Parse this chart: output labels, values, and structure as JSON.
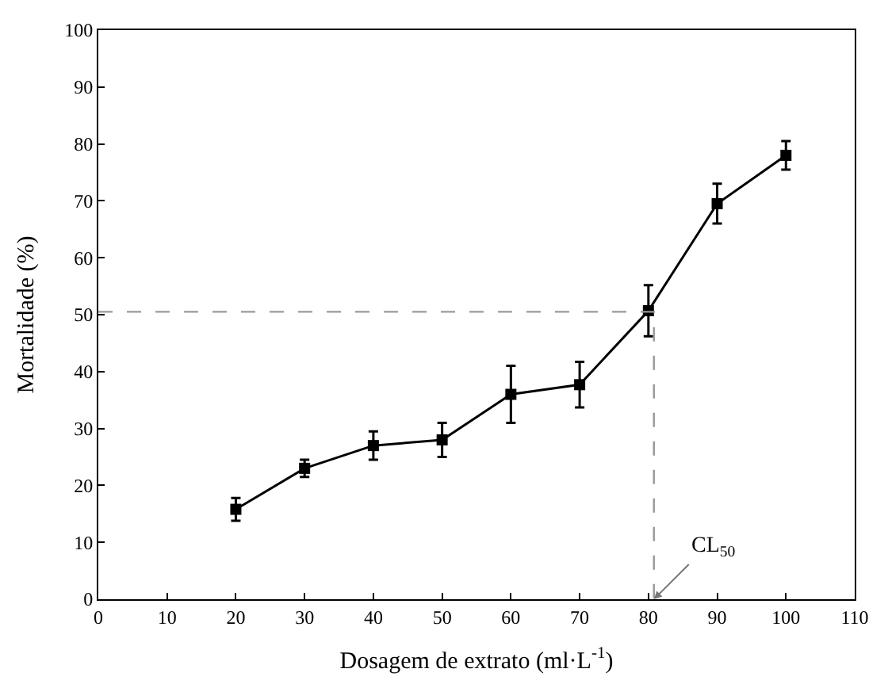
{
  "chart_data": {
    "type": "line",
    "xlabel": "Dosagem de extrato (ml·L$^{-1}$)",
    "ylabel": "Mortalidade (%)",
    "xlim": [
      0,
      110
    ],
    "xticks": [
      0,
      10,
      20,
      30,
      40,
      50,
      60,
      70,
      80,
      90,
      100,
      110
    ],
    "ylim": [
      0,
      100
    ],
    "yticks": [
      0,
      10,
      20,
      30,
      40,
      50,
      60,
      70,
      80,
      90,
      100
    ],
    "series": [
      {
        "color": "#000000",
        "marker": "square",
        "line_style": "solid",
        "x": [
          20,
          30,
          40,
          50,
          60,
          70,
          80,
          90,
          100
        ],
        "values": [
          15.8,
          23,
          27,
          28,
          36,
          37.7,
          50.7,
          69.5,
          78
        ],
        "errors": [
          2,
          1.5,
          2.5,
          3,
          5,
          4,
          4.5,
          3.5,
          2.5
        ]
      },
      {
        "color": "#999999",
        "marker": "none",
        "line_style": "dashed",
        "x": [
          0,
          80.8,
          80.8
        ],
        "values": [
          50.5,
          50.5,
          0
        ]
      }
    ],
    "annotations": [
      {
        "text": "CL$_{50}$",
        "x": 80.8,
        "y": 0
      }
    ]
  }
}
